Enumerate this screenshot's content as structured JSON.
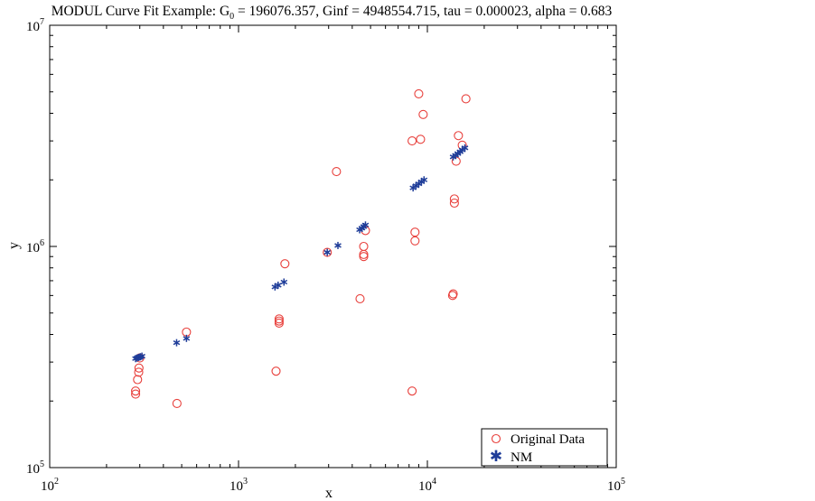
{
  "chart_data": {
    "type": "scatter",
    "title": "MODUL Curve Fit Example: G0 = 196076.357, Ginf = 4948554.715, tau = 0.000023, alpha = 0.683",
    "title_parts": {
      "prefix": "MODUL Curve Fit Example: G",
      "subscript": "0",
      "suffix": " = 196076.357, Ginf = 4948554.715, tau = 0.000023, alpha = 0.683"
    },
    "xlabel": "x",
    "ylabel": "y",
    "x_scale": "log",
    "y_scale": "log",
    "xlim": [
      100,
      100000
    ],
    "ylim": [
      100000,
      10000000
    ],
    "x_ticks": [
      {
        "base": "10",
        "exp": "2",
        "value": 100
      },
      {
        "base": "10",
        "exp": "3",
        "value": 1000
      },
      {
        "base": "10",
        "exp": "4",
        "value": 10000
      },
      {
        "base": "10",
        "exp": "5",
        "value": 100000
      }
    ],
    "y_ticks": [
      {
        "base": "10",
        "exp": "5",
        "value": 100000
      },
      {
        "base": "10",
        "exp": "6",
        "value": 1000000
      },
      {
        "base": "10",
        "exp": "7",
        "value": 10000000
      }
    ],
    "grid": false,
    "legend_position": "bottom-right",
    "series": [
      {
        "name": "Original Data",
        "marker": "circle",
        "color": "#e8403c",
        "points": [
          [
            285,
            215000
          ],
          [
            285,
            222000
          ],
          [
            292,
            250000
          ],
          [
            296,
            270000
          ],
          [
            297,
            282000
          ],
          [
            300,
            313000
          ],
          [
            472,
            195000
          ],
          [
            530,
            410000
          ],
          [
            1580,
            273000
          ],
          [
            1640,
            450000
          ],
          [
            1640,
            460000
          ],
          [
            1640,
            470000
          ],
          [
            1760,
            835000
          ],
          [
            2950,
            940000
          ],
          [
            3300,
            2180000
          ],
          [
            4400,
            580000
          ],
          [
            4600,
            900000
          ],
          [
            4600,
            920000
          ],
          [
            4600,
            1000000
          ],
          [
            4700,
            1180000
          ],
          [
            8300,
            222000
          ],
          [
            8300,
            3000000
          ],
          [
            8600,
            1060000
          ],
          [
            8600,
            1160000
          ],
          [
            9000,
            4900000
          ],
          [
            9200,
            3050000
          ],
          [
            9500,
            3950000
          ],
          [
            13600,
            600000
          ],
          [
            13700,
            610000
          ],
          [
            13900,
            1570000
          ],
          [
            13900,
            1640000
          ],
          [
            14200,
            2430000
          ],
          [
            14600,
            3170000
          ],
          [
            15300,
            2870000
          ],
          [
            16000,
            4650000
          ]
        ]
      },
      {
        "name": "NM",
        "marker": "star",
        "color": "#1f3d99",
        "points": [
          [
            285,
            311000
          ],
          [
            290,
            313000
          ],
          [
            296,
            315000
          ],
          [
            302,
            317000
          ],
          [
            308,
            319000
          ],
          [
            470,
            367000
          ],
          [
            530,
            384000
          ],
          [
            1560,
            656000
          ],
          [
            1620,
            668000
          ],
          [
            1740,
            690000
          ],
          [
            2950,
            940000
          ],
          [
            3360,
            1010000
          ],
          [
            4380,
            1190000
          ],
          [
            4500,
            1210000
          ],
          [
            4600,
            1230000
          ],
          [
            4700,
            1250000
          ],
          [
            8400,
            1840000
          ],
          [
            8700,
            1880000
          ],
          [
            9000,
            1920000
          ],
          [
            9300,
            1960000
          ],
          [
            9600,
            2000000
          ],
          [
            13700,
            2540000
          ],
          [
            14100,
            2580000
          ],
          [
            14500,
            2630000
          ],
          [
            14900,
            2680000
          ],
          [
            15300,
            2730000
          ],
          [
            15800,
            2790000
          ]
        ]
      }
    ]
  }
}
